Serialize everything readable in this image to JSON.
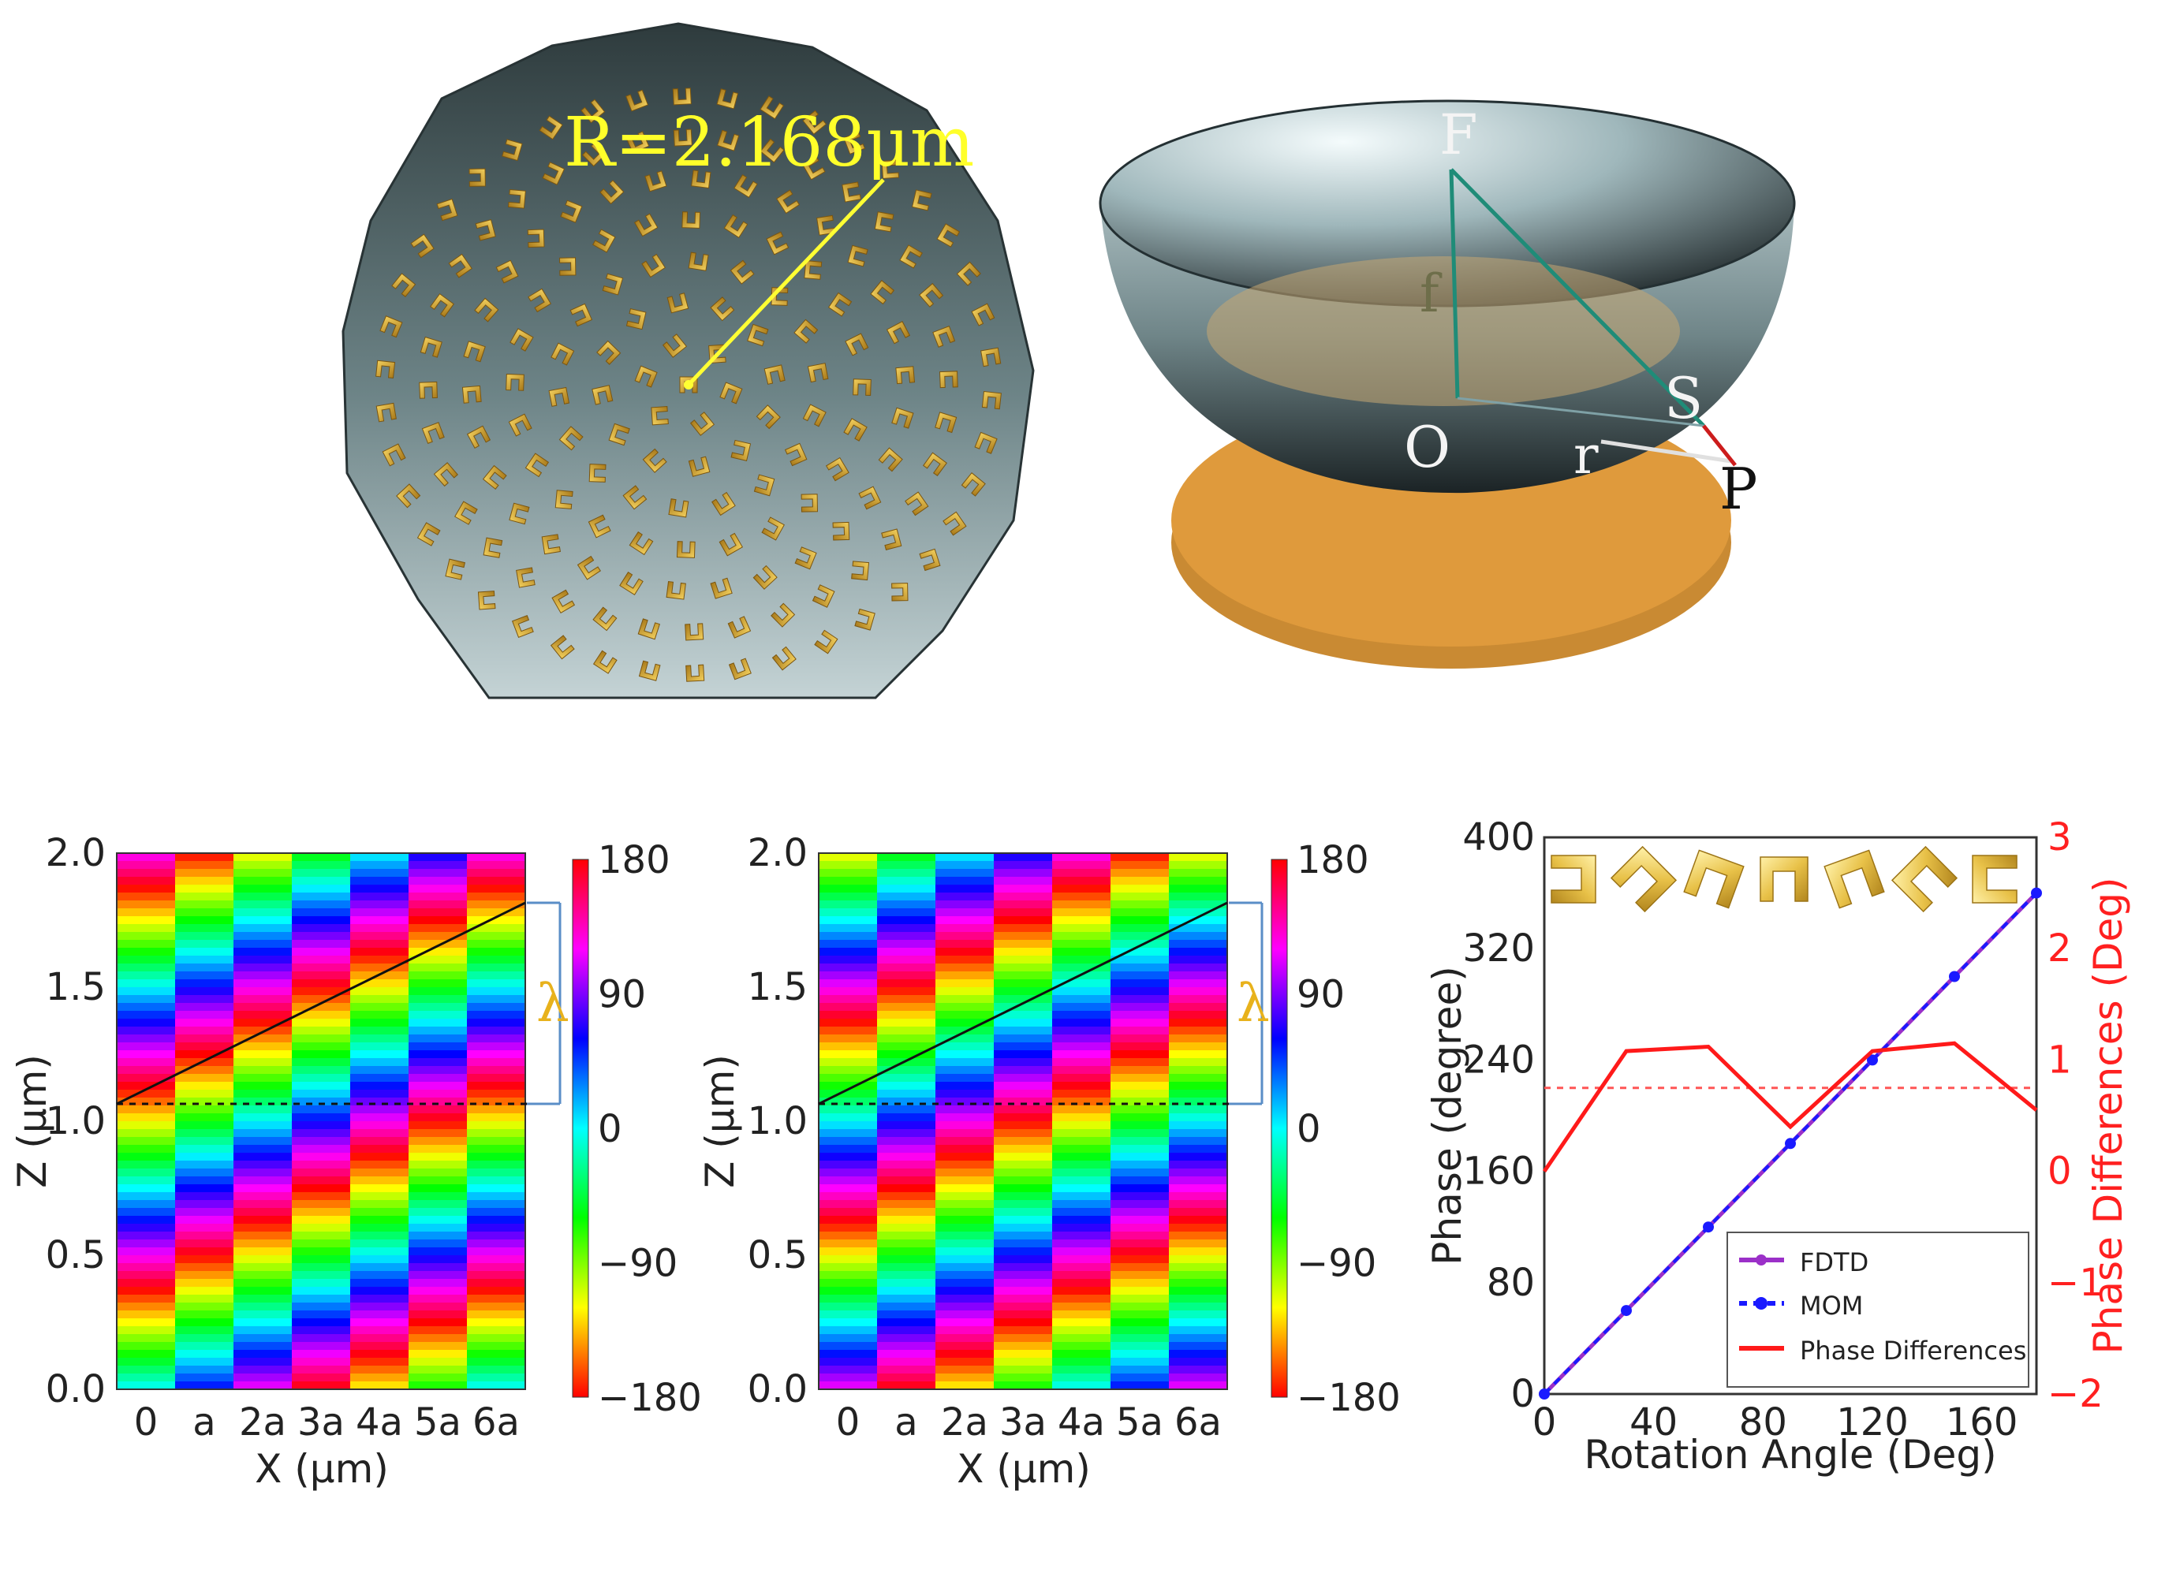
{
  "figure_top": {
    "radius_label": "R=2.168μm",
    "geometry_labels": {
      "F": "F",
      "f": "f",
      "O": "O",
      "S": "S",
      "r": "r",
      "P": "P"
    }
  },
  "chart_data": [
    {
      "type": "heatmap",
      "panel": "left",
      "xlabel": "X (μm)",
      "ylabel": "Z (μm)",
      "xticks": [
        "0",
        "a",
        "2a",
        "3a",
        "4a",
        "5a",
        "6a"
      ],
      "yticks": [
        "0.0",
        "0.5",
        "1.0",
        "1.5",
        "2.0"
      ],
      "ylim": [
        0,
        2.0
      ],
      "colorbar": {
        "ticks": [
          "180",
          "90",
          "0",
          "−90",
          "−180"
        ],
        "range": [
          -180,
          180
        ]
      },
      "annotation": "λ",
      "columns": 7,
      "column_phase_offsets_deg": [
        0,
        60,
        120,
        180,
        240,
        300,
        360
      ],
      "wavefront_line": {
        "z_start": 1.05,
        "z_end": 1.8
      },
      "reference_line_z": 1.05
    },
    {
      "type": "heatmap",
      "panel": "middle",
      "xlabel": "X (μm)",
      "ylabel": "Z (μm)",
      "xticks": [
        "0",
        "a",
        "2a",
        "3a",
        "4a",
        "5a",
        "6a"
      ],
      "yticks": [
        "0.0",
        "0.5",
        "1.0",
        "1.5",
        "2.0"
      ],
      "ylim": [
        0,
        2.0
      ],
      "colorbar": {
        "ticks": [
          "180",
          "90",
          "0",
          "−90",
          "−180"
        ],
        "range": [
          -180,
          180
        ]
      },
      "annotation": "λ",
      "columns": 7,
      "column_phase_offsets_deg": [
        0,
        60,
        120,
        180,
        240,
        300,
        360
      ],
      "wavefront_line": {
        "z_start": 1.05,
        "z_end": 1.8
      },
      "reference_line_z": 1.05
    },
    {
      "type": "line",
      "panel": "right",
      "xlabel": "Rotation Angle (Deg)",
      "ylabel": "Phase (degree)",
      "y2label": "Phase Differences (Deg)",
      "xlim": [
        0,
        180
      ],
      "ylim": [
        0,
        400
      ],
      "y2lim": [
        -2,
        3
      ],
      "xticks": [
        "0",
        "40",
        "80",
        "120",
        "160"
      ],
      "yticks": [
        "0",
        "80",
        "160",
        "240",
        "320",
        "400"
      ],
      "y2ticks": [
        "−2",
        "−1",
        "0",
        "1",
        "2",
        "3"
      ],
      "x": [
        0,
        30,
        60,
        90,
        120,
        150,
        180
      ],
      "series": [
        {
          "name": "FDTD",
          "axis": "left",
          "values": [
            0,
            60,
            120,
            180,
            240,
            300,
            360
          ],
          "color": "#9b30c8"
        },
        {
          "name": "MOM",
          "axis": "left",
          "values": [
            0,
            60,
            120,
            180,
            240,
            300,
            360
          ],
          "color": "#1a1aff"
        },
        {
          "name": "Phase Differences",
          "axis": "right",
          "values": [
            0,
            1.08,
            1.12,
            0.4,
            1.08,
            1.15,
            0.55
          ],
          "color": "#ff1a1a"
        }
      ],
      "reference_line_y2": 0.75,
      "legend_position": "lower-right"
    }
  ]
}
